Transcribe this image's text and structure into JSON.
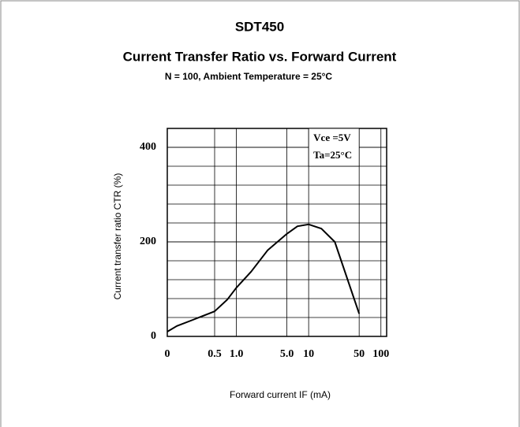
{
  "chart_data": {
    "type": "line",
    "title": "SDT450",
    "subtitle": "Current Transfer Ratio vs. Forward Current",
    "note": "N = 100, Ambient Temperature = 25°C",
    "xlabel": "Forward current IF (mA)",
    "ylabel": "Current transfer ratio CTR (%)",
    "annotations": [
      "Vce =5V",
      "Ta=25°C"
    ],
    "x": [
      0,
      0.15,
      0.25,
      0.5,
      0.75,
      1.0,
      1.6,
      2.7,
      5,
      7,
      10,
      15,
      23,
      50
    ],
    "series": [
      {
        "color": "#000000",
        "values": [
          10,
          22,
          35,
          53,
          78,
          103,
          137,
          182,
          217,
          233,
          237,
          228,
          200,
          48
        ]
      }
    ],
    "xscale": "log",
    "xlim": [
      0,
      120
    ],
    "xticks": [
      0,
      0.5,
      {
        "value": 1,
        "label": "1.0"
      },
      {
        "value": 5,
        "label": "5.0"
      },
      10,
      50,
      100
    ],
    "ylim": [
      0,
      440
    ],
    "yticks": [
      0,
      200,
      400
    ],
    "grid": true
  }
}
